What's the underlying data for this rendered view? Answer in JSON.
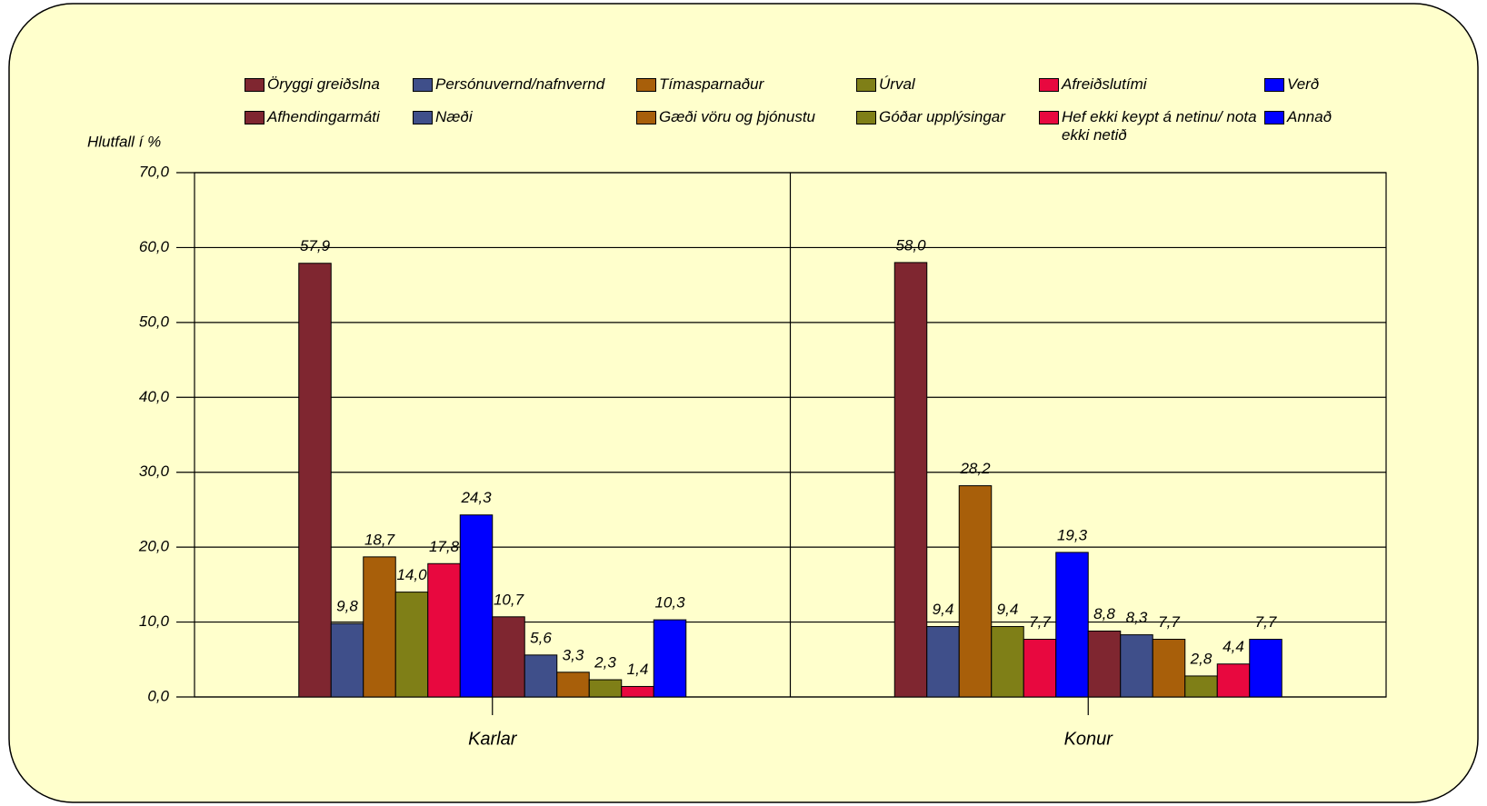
{
  "chart_data": {
    "type": "bar",
    "ylabel": "Hlutfall í %",
    "categories": [
      "Karlar",
      "Konur"
    ],
    "series": [
      {
        "name": "Öryggi greiðslna",
        "color": "#7f2630",
        "values": [
          57.9,
          58.0
        ],
        "value_labels": [
          "57,9",
          "58,0"
        ]
      },
      {
        "name": "Persónuvernd/nafnvernd",
        "color": "#3f4f8a",
        "values": [
          9.8,
          9.4
        ],
        "value_labels": [
          "9,8",
          "9,4"
        ]
      },
      {
        "name": "Tímasparnaður",
        "color": "#a85f0a",
        "values": [
          18.7,
          28.2
        ],
        "value_labels": [
          "18,7",
          "28,2"
        ]
      },
      {
        "name": "Úrval",
        "color": "#7f7f17",
        "values": [
          14.0,
          9.4
        ],
        "value_labels": [
          "14,0",
          "9,4"
        ]
      },
      {
        "name": "Afreiðslutími",
        "color": "#e8083f",
        "values": [
          17.8,
          7.7
        ],
        "value_labels": [
          "17,8",
          "7,7"
        ]
      },
      {
        "name": "Verð",
        "color": "#0000ff",
        "values": [
          24.3,
          19.3
        ],
        "value_labels": [
          "24,3",
          "19,3"
        ]
      },
      {
        "name": "Afhendingarmáti",
        "color": "#7f2630",
        "values": [
          10.7,
          8.8
        ],
        "value_labels": [
          "10,7",
          "8,8"
        ]
      },
      {
        "name": "Næði",
        "color": "#3f4f8a",
        "values": [
          5.6,
          8.3
        ],
        "value_labels": [
          "5,6",
          "8,3"
        ]
      },
      {
        "name": "Gæði vöru og þjónustu",
        "color": "#a85f0a",
        "values": [
          3.3,
          7.7
        ],
        "value_labels": [
          "3,3",
          "7,7"
        ]
      },
      {
        "name": "Góðar upplýsingar",
        "color": "#7f7f17",
        "values": [
          2.3,
          2.8
        ],
        "value_labels": [
          "2,3",
          "2,8"
        ]
      },
      {
        "name": "Hef ekki keypt á netinu/ nota ekki netið",
        "color": "#e8083f",
        "values": [
          1.4,
          4.4
        ],
        "value_labels": [
          "1,4",
          "4,4"
        ]
      },
      {
        "name": "Annað",
        "color": "#0000ff",
        "values": [
          10.3,
          7.7
        ],
        "value_labels": [
          "10,3",
          "7,7"
        ]
      }
    ],
    "ylim": [
      0,
      70
    ],
    "yticks": [
      {
        "value": 0,
        "label": "0,0"
      },
      {
        "value": 10,
        "label": "10,0"
      },
      {
        "value": 20,
        "label": "20,0"
      },
      {
        "value": 30,
        "label": "30,0"
      },
      {
        "value": 40,
        "label": "40,0"
      },
      {
        "value": 50,
        "label": "50,0"
      },
      {
        "value": 60,
        "label": "60,0"
      },
      {
        "value": 70,
        "label": "70,0"
      }
    ],
    "grid": true
  }
}
